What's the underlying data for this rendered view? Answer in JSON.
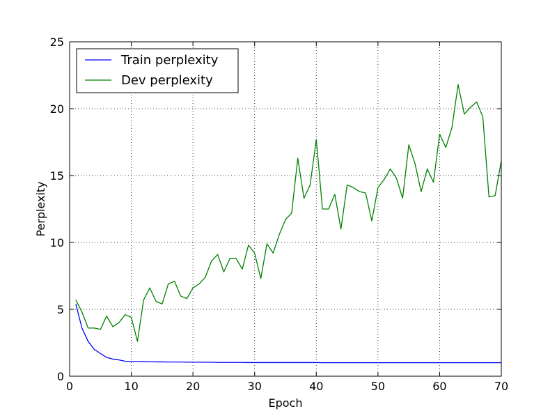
{
  "chart_data": {
    "type": "line",
    "xlabel": "Epoch",
    "ylabel": "Perplexity",
    "xlim": [
      0,
      70
    ],
    "ylim": [
      0,
      25
    ],
    "xticks": [
      0,
      10,
      20,
      30,
      40,
      50,
      60,
      70
    ],
    "yticks": [
      0,
      5,
      10,
      15,
      20,
      25
    ],
    "grid": true,
    "legend_position": "top-left",
    "series": [
      {
        "name": "Train perplexity",
        "color": "#0000ff",
        "x": [
          1,
          2,
          3,
          4,
          5,
          6,
          7,
          8,
          9,
          10,
          11,
          12,
          13,
          14,
          15,
          16,
          17,
          18,
          19,
          20,
          21,
          22,
          23,
          24,
          25,
          26,
          27,
          28,
          29,
          30,
          31,
          32,
          33,
          34,
          35,
          36,
          37,
          38,
          39,
          40,
          41,
          42,
          43,
          44,
          45,
          46,
          47,
          48,
          49,
          50,
          51,
          52,
          53,
          54,
          55,
          56,
          57,
          58,
          59,
          60,
          61,
          62,
          63,
          64,
          65,
          66,
          67,
          68,
          69,
          70
        ],
        "y": [
          5.4,
          3.6,
          2.6,
          2.0,
          1.7,
          1.4,
          1.28,
          1.22,
          1.12,
          1.1,
          1.1,
          1.09,
          1.08,
          1.07,
          1.07,
          1.06,
          1.06,
          1.06,
          1.05,
          1.05,
          1.05,
          1.04,
          1.04,
          1.03,
          1.03,
          1.03,
          1.03,
          1.03,
          1.02,
          1.02,
          1.02,
          1.02,
          1.02,
          1.02,
          1.02,
          1.02,
          1.02,
          1.02,
          1.02,
          1.02,
          1.01,
          1.01,
          1.01,
          1.01,
          1.01,
          1.01,
          1.01,
          1.01,
          1.01,
          1.01,
          1.01,
          1.01,
          1.01,
          1.01,
          1.01,
          1.01,
          1.01,
          1.01,
          1.01,
          1.01,
          1.01,
          1.01,
          1.01,
          1.01,
          1.01,
          1.01,
          1.01,
          1.01,
          1.01,
          1.01
        ]
      },
      {
        "name": "Dev perplexity",
        "color": "#008000",
        "x": [
          1,
          2,
          3,
          4,
          5,
          6,
          7,
          8,
          9,
          10,
          11,
          12,
          13,
          14,
          15,
          16,
          17,
          18,
          19,
          20,
          21,
          22,
          23,
          24,
          25,
          26,
          27,
          28,
          29,
          30,
          31,
          32,
          33,
          34,
          35,
          36,
          37,
          38,
          39,
          40,
          41,
          42,
          43,
          44,
          45,
          46,
          47,
          48,
          49,
          50,
          51,
          52,
          53,
          54,
          55,
          56,
          57,
          58,
          59,
          60,
          61,
          62,
          63,
          64,
          65,
          66,
          67,
          68,
          69,
          70
        ],
        "y": [
          5.7,
          4.8,
          3.6,
          3.6,
          3.5,
          4.5,
          3.7,
          4.0,
          4.6,
          4.4,
          2.6,
          5.7,
          6.6,
          5.6,
          5.4,
          6.9,
          7.1,
          6.0,
          5.8,
          6.6,
          6.9,
          7.4,
          8.6,
          9.1,
          7.8,
          8.8,
          8.8,
          8.0,
          9.8,
          9.2,
          7.3,
          9.9,
          9.2,
          10.6,
          11.7,
          12.2,
          16.3,
          13.3,
          14.3,
          17.7,
          12.5,
          12.5,
          13.6,
          11.0,
          14.3,
          14.1,
          13.8,
          13.7,
          11.6,
          14.1,
          14.7,
          15.5,
          14.8,
          13.3,
          17.3,
          15.9,
          13.8,
          15.5,
          14.5,
          18.1,
          17.1,
          18.6,
          21.8,
          19.6,
          20.1,
          20.5,
          19.4,
          13.4,
          13.5,
          16.1
        ]
      }
    ]
  }
}
